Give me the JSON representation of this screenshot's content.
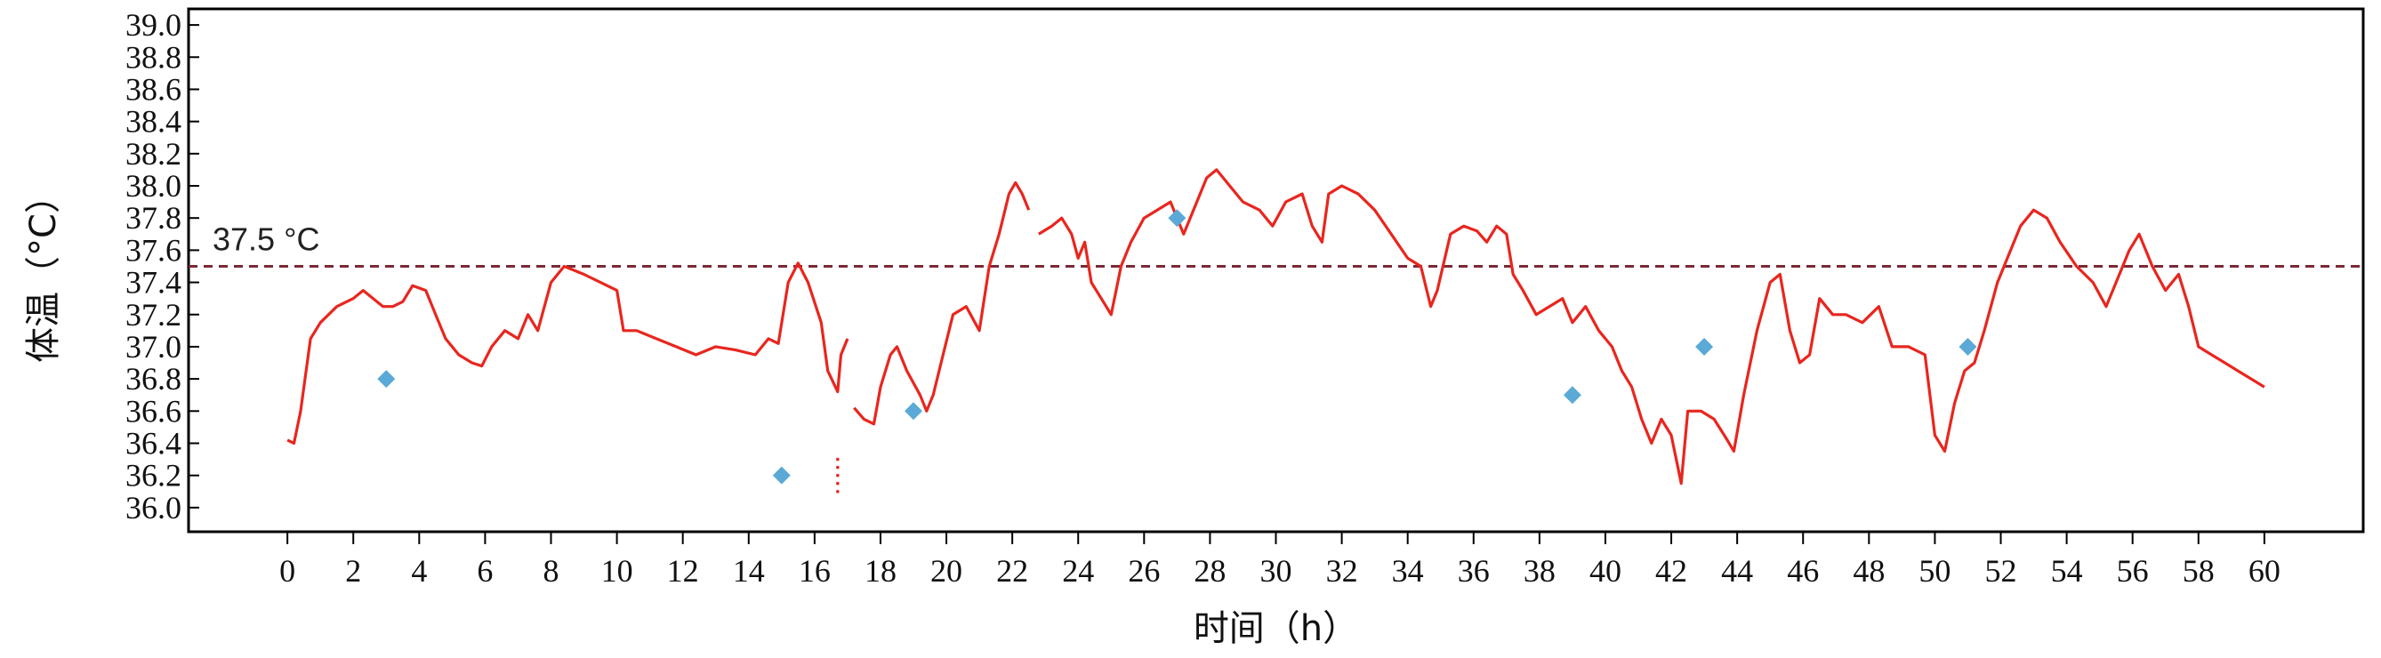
{
  "chart_data": {
    "type": "line",
    "title": "",
    "xlabel": "时间（h）",
    "ylabel": "体温（°C）",
    "xlim": [
      -3,
      63
    ],
    "ylim": [
      35.85,
      39.1
    ],
    "x_ticks": [
      "0",
      "2",
      "4",
      "6",
      "8",
      "10",
      "12",
      "14",
      "16",
      "18",
      "20",
      "22",
      "24",
      "26",
      "28",
      "30",
      "32",
      "34",
      "36",
      "38",
      "40",
      "42",
      "44",
      "46",
      "48",
      "50",
      "52",
      "54",
      "56",
      "58",
      "60"
    ],
    "y_ticks": [
      "36.0",
      "36.2",
      "36.4",
      "36.6",
      "36.8",
      "37.0",
      "37.2",
      "37.4",
      "37.6",
      "37.8",
      "38.0",
      "38.2",
      "38.4",
      "38.6",
      "38.8",
      "39.0"
    ],
    "reference_line": {
      "value": 37.5,
      "label": "37.5 °C",
      "color": "#7a2a35"
    },
    "grid": false,
    "series": [
      {
        "kind": "line",
        "color": "#e8261e",
        "segments": [
          [
            [
              0.0,
              36.42
            ],
            [
              0.2,
              36.4
            ],
            [
              0.4,
              36.6
            ],
            [
              0.7,
              37.05
            ],
            [
              1.0,
              37.15
            ],
            [
              1.5,
              37.25
            ],
            [
              2.0,
              37.3
            ],
            [
              2.3,
              37.35
            ],
            [
              2.6,
              37.3
            ],
            [
              2.9,
              37.25
            ],
            [
              3.2,
              37.25
            ],
            [
              3.5,
              37.28
            ],
            [
              3.8,
              37.38
            ],
            [
              4.2,
              37.35
            ],
            [
              4.5,
              37.2
            ],
            [
              4.8,
              37.05
            ],
            [
              5.2,
              36.95
            ],
            [
              5.6,
              36.9
            ],
            [
              5.9,
              36.88
            ],
            [
              6.2,
              37.0
            ],
            [
              6.6,
              37.1
            ],
            [
              7.0,
              37.05
            ],
            [
              7.3,
              37.2
            ],
            [
              7.6,
              37.1
            ],
            [
              8.0,
              37.4
            ],
            [
              8.4,
              37.5
            ],
            [
              9.0,
              37.45
            ],
            [
              9.5,
              37.4
            ],
            [
              10.0,
              37.35
            ],
            [
              10.2,
              37.1
            ],
            [
              10.6,
              37.1
            ],
            [
              11.2,
              37.05
            ],
            [
              11.8,
              37.0
            ],
            [
              12.4,
              36.95
            ],
            [
              13.0,
              37.0
            ],
            [
              13.6,
              36.98
            ],
            [
              14.2,
              36.95
            ],
            [
              14.6,
              37.05
            ],
            [
              14.9,
              37.02
            ],
            [
              15.2,
              37.4
            ],
            [
              15.5,
              37.52
            ],
            [
              15.8,
              37.4
            ],
            [
              16.2,
              37.15
            ],
            [
              16.4,
              36.85
            ],
            [
              16.7,
              36.72
            ],
            [
              16.8,
              36.95
            ],
            [
              17.0,
              37.05
            ]
          ],
          [
            [
              17.2,
              36.62
            ],
            [
              17.5,
              36.55
            ],
            [
              17.8,
              36.52
            ],
            [
              18.0,
              36.75
            ],
            [
              18.3,
              36.95
            ],
            [
              18.5,
              37.0
            ],
            [
              18.8,
              36.85
            ],
            [
              19.2,
              36.7
            ],
            [
              19.4,
              36.6
            ],
            [
              19.6,
              36.7
            ],
            [
              19.9,
              36.95
            ],
            [
              20.2,
              37.2
            ],
            [
              20.6,
              37.25
            ],
            [
              21.0,
              37.1
            ],
            [
              21.3,
              37.5
            ],
            [
              21.6,
              37.7
            ],
            [
              21.9,
              37.95
            ],
            [
              22.1,
              38.02
            ],
            [
              22.3,
              37.95
            ],
            [
              22.5,
              37.85
            ]
          ],
          [
            [
              22.8,
              37.7
            ],
            [
              23.2,
              37.75
            ],
            [
              23.5,
              37.8
            ],
            [
              23.8,
              37.7
            ],
            [
              24.0,
              37.55
            ],
            [
              24.2,
              37.65
            ],
            [
              24.4,
              37.4
            ],
            [
              24.7,
              37.3
            ],
            [
              25.0,
              37.2
            ],
            [
              25.3,
              37.5
            ],
            [
              25.6,
              37.65
            ],
            [
              26.0,
              37.8
            ],
            [
              26.4,
              37.85
            ],
            [
              26.8,
              37.9
            ],
            [
              27.2,
              37.7
            ],
            [
              27.6,
              37.9
            ],
            [
              27.9,
              38.05
            ],
            [
              28.2,
              38.1
            ],
            [
              28.6,
              38.0
            ],
            [
              29.0,
              37.9
            ],
            [
              29.5,
              37.85
            ],
            [
              29.9,
              37.75
            ],
            [
              30.3,
              37.9
            ],
            [
              30.8,
              37.95
            ],
            [
              31.1,
              37.75
            ],
            [
              31.4,
              37.65
            ],
            [
              31.6,
              37.95
            ],
            [
              32.0,
              38.0
            ],
            [
              32.5,
              37.95
            ],
            [
              33.0,
              37.85
            ],
            [
              33.5,
              37.7
            ],
            [
              34.0,
              37.55
            ],
            [
              34.4,
              37.5
            ],
            [
              34.7,
              37.25
            ],
            [
              34.9,
              37.35
            ],
            [
              35.3,
              37.7
            ],
            [
              35.7,
              37.75
            ],
            [
              36.1,
              37.72
            ],
            [
              36.4,
              37.65
            ],
            [
              36.7,
              37.75
            ],
            [
              37.0,
              37.7
            ],
            [
              37.2,
              37.45
            ],
            [
              37.5,
              37.35
            ],
            [
              37.9,
              37.2
            ],
            [
              38.3,
              37.25
            ],
            [
              38.7,
              37.3
            ],
            [
              39.0,
              37.15
            ],
            [
              39.4,
              37.25
            ],
            [
              39.8,
              37.1
            ],
            [
              40.2,
              37.0
            ],
            [
              40.5,
              36.85
            ],
            [
              40.8,
              36.75
            ],
            [
              41.1,
              36.55
            ],
            [
              41.4,
              36.4
            ],
            [
              41.7,
              36.55
            ],
            [
              42.0,
              36.45
            ],
            [
              42.2,
              36.25
            ],
            [
              42.3,
              36.15
            ],
            [
              42.5,
              36.6
            ],
            [
              42.9,
              36.6
            ],
            [
              43.3,
              36.55
            ],
            [
              43.7,
              36.42
            ],
            [
              43.9,
              36.35
            ],
            [
              44.2,
              36.7
            ],
            [
              44.6,
              37.1
            ],
            [
              45.0,
              37.4
            ],
            [
              45.3,
              37.45
            ],
            [
              45.6,
              37.1
            ],
            [
              45.9,
              36.9
            ],
            [
              46.2,
              36.95
            ],
            [
              46.5,
              37.3
            ],
            [
              46.9,
              37.2
            ],
            [
              47.3,
              37.2
            ],
            [
              47.8,
              37.15
            ],
            [
              48.3,
              37.25
            ],
            [
              48.7,
              37.0
            ],
            [
              49.2,
              37.0
            ],
            [
              49.7,
              36.95
            ],
            [
              50.0,
              36.45
            ],
            [
              50.3,
              36.35
            ],
            [
              50.6,
              36.65
            ],
            [
              50.9,
              36.85
            ],
            [
              51.2,
              36.9
            ],
            [
              51.5,
              37.1
            ],
            [
              51.9,
              37.4
            ],
            [
              52.2,
              37.55
            ],
            [
              52.6,
              37.75
            ],
            [
              53.0,
              37.85
            ],
            [
              53.4,
              37.8
            ],
            [
              53.8,
              37.65
            ],
            [
              54.3,
              37.5
            ],
            [
              54.8,
              37.4
            ],
            [
              55.2,
              37.25
            ],
            [
              55.6,
              37.45
            ],
            [
              55.9,
              37.6
            ],
            [
              56.2,
              37.7
            ],
            [
              56.6,
              37.5
            ],
            [
              57.0,
              37.35
            ],
            [
              57.4,
              37.45
            ],
            [
              57.7,
              37.25
            ],
            [
              58.0,
              37.0
            ],
            [
              58.4,
              36.95
            ],
            [
              58.8,
              36.9
            ],
            [
              59.2,
              36.85
            ],
            [
              59.6,
              36.8
            ],
            [
              60.0,
              36.75
            ]
          ]
        ],
        "dots": [
          [
            16.7,
            36.3
          ],
          [
            16.7,
            36.25
          ],
          [
            16.7,
            36.2
          ],
          [
            16.7,
            36.15
          ],
          [
            16.7,
            36.1
          ]
        ]
      },
      {
        "kind": "scatter",
        "marker": "diamond",
        "color": "#5aa9d6",
        "points": [
          [
            3,
            36.8
          ],
          [
            15,
            36.2
          ],
          [
            19,
            36.6
          ],
          [
            27,
            37.8
          ],
          [
            39,
            36.7
          ],
          [
            43,
            37.0
          ],
          [
            51,
            37.0
          ]
        ]
      }
    ]
  }
}
